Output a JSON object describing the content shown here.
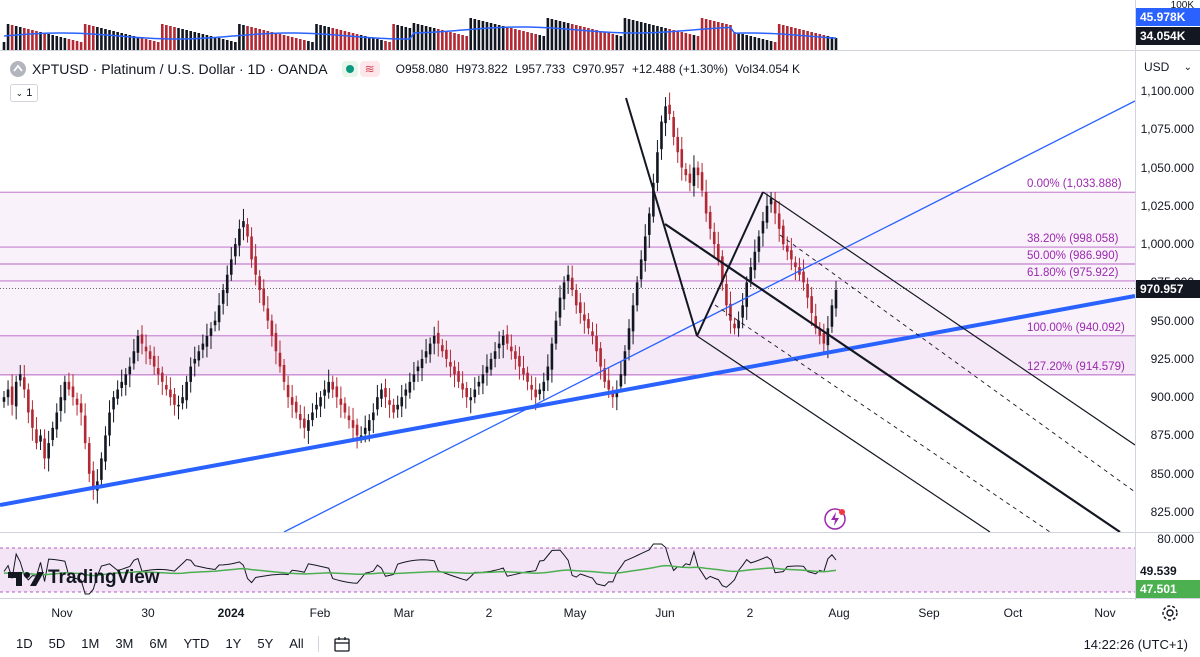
{
  "legend": {
    "symbol_line": "XPTUSD · Platinum / U.S. Dollar · 1D · OANDA",
    "open": "O958.080",
    "high": "H973.822",
    "low": "L957.733",
    "close": "C970.957",
    "change": "+12.488 (+1.30%)",
    "vol": "Vol34.054 K",
    "toggle": "1"
  },
  "price_axis": {
    "currency": "USD",
    "ticks": [
      "1,100.000",
      "1,075.000",
      "1,050.000",
      "1,025.000",
      "1,000.000",
      "975.000",
      "950.000",
      "925.000",
      "900.000",
      "875.000",
      "850.000",
      "825.000"
    ],
    "current_price": "970.957",
    "vol_ticks": [
      "100K"
    ],
    "vol_label_1": "45.978K",
    "vol_label_2": "34.054K",
    "rsi_top": "80.000",
    "rsi_label_1": "49.539",
    "rsi_label_2": "47.501"
  },
  "fib_levels": [
    {
      "label": "0.00% (1,033.888)",
      "price": 1033.888
    },
    {
      "label": "38.20% (998.058)",
      "price": 998.058
    },
    {
      "label": "50.00% (986.990)",
      "price": 986.99
    },
    {
      "label": "61.80% (975.922)",
      "price": 975.922
    },
    {
      "label": "100.00% (940.092)",
      "price": 940.092
    },
    {
      "label": "127.20% (914.579)",
      "price": 914.579
    }
  ],
  "x_axis": [
    "Nov",
    "30",
    "2024",
    "Feb",
    "Mar",
    "2",
    "May",
    "Jun",
    "2",
    "Aug",
    "Sep",
    "Oct",
    "Nov"
  ],
  "timeframes": [
    "1D",
    "5D",
    "1M",
    "3M",
    "6M",
    "YTD",
    "1Y",
    "5Y",
    "All"
  ],
  "clock": "14:22:26 (UTC+1)",
  "brand": "TradingView",
  "colors": {
    "up": "#089981",
    "down": "#d1425a",
    "fib": "#9c27b0",
    "trend": "#2962ff",
    "rsi": "#4caf50",
    "vol_ma": "#2962ff"
  },
  "chart_data": {
    "type": "candlestick",
    "ylim": [
      815,
      1110
    ],
    "closes": [
      900,
      905,
      895,
      910,
      915,
      905,
      890,
      880,
      870,
      875,
      860,
      870,
      880,
      890,
      900,
      910,
      905,
      900,
      895,
      890,
      870,
      850,
      840,
      845,
      860,
      875,
      890,
      900,
      905,
      910,
      915,
      920,
      930,
      940,
      935,
      930,
      925,
      920,
      915,
      910,
      905,
      900,
      895,
      895,
      900,
      910,
      920,
      925,
      930,
      935,
      940,
      945,
      950,
      960,
      970,
      980,
      990,
      1000,
      1010,
      1015,
      1005,
      990,
      980,
      970,
      960,
      950,
      940,
      930,
      920,
      910,
      900,
      895,
      890,
      885,
      880,
      885,
      890,
      895,
      900,
      905,
      910,
      905,
      900,
      895,
      890,
      885,
      880,
      875,
      875,
      880,
      885,
      890,
      900,
      905,
      900,
      895,
      890,
      895,
      900,
      905,
      910,
      915,
      920,
      925,
      930,
      935,
      940,
      935,
      930,
      925,
      920,
      915,
      910,
      905,
      900,
      900,
      905,
      910,
      915,
      920,
      925,
      930,
      935,
      940,
      935,
      930,
      925,
      920,
      915,
      910,
      905,
      900,
      905,
      910,
      920,
      935,
      950,
      965,
      975,
      980,
      970,
      960,
      955,
      950,
      945,
      940,
      930,
      920,
      910,
      905,
      900,
      905,
      915,
      930,
      945,
      960,
      975,
      990,
      1005,
      1020,
      1040,
      1060,
      1080,
      1090,
      1085,
      1070,
      1060,
      1050,
      1045,
      1040,
      1050,
      1045,
      1035,
      1020,
      1010,
      1000,
      990,
      975,
      960,
      950,
      945,
      950,
      960,
      975,
      985,
      995,
      1005,
      1015,
      1025,
      1030,
      1020,
      1010,
      1000,
      995,
      990,
      985,
      980,
      975,
      965,
      955,
      945,
      940,
      935,
      945,
      960,
      970
    ],
    "fib_anchor_high": 1033.888,
    "fib_anchor_low": 940.092
  }
}
